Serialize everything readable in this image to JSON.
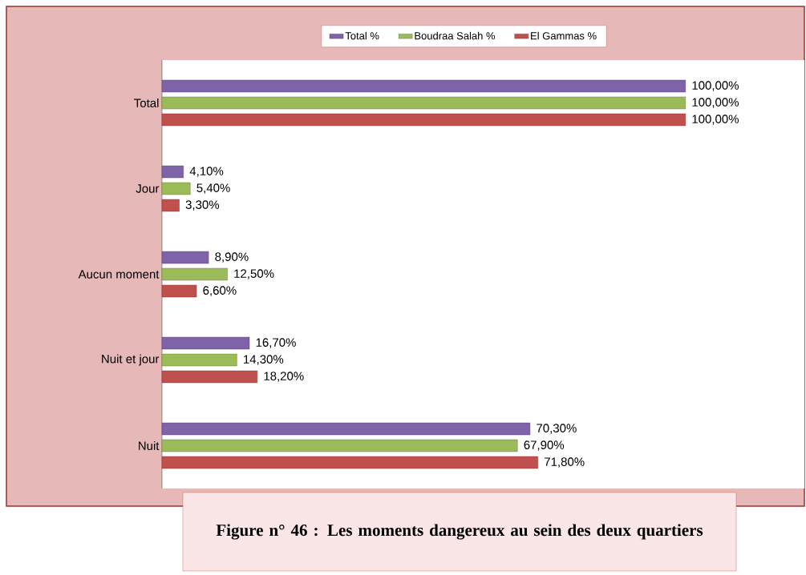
{
  "chart_data": {
    "type": "bar",
    "orientation": "horizontal",
    "categories": [
      "Total",
      "Jour",
      "Aucun moment",
      "Nuit et jour",
      "Nuit"
    ],
    "series": [
      {
        "name": "Total %",
        "color": "#7f63a8",
        "values": [
          100,
          4.1,
          8.9,
          16.7,
          70.3
        ],
        "value_labels": [
          "100,00%",
          "4,10%",
          "8,90%",
          "16,70%",
          "70,30%"
        ]
      },
      {
        "name": "Boudraa Salah %",
        "color": "#9bbb59",
        "values": [
          100,
          5.4,
          12.5,
          14.3,
          67.9
        ],
        "value_labels": [
          "100,00%",
          "5,40%",
          "12,50%",
          "14,30%",
          "67,90%"
        ]
      },
      {
        "name": "El Gammas %",
        "color": "#c0504d",
        "values": [
          100,
          3.3,
          6.6,
          18.2,
          71.8
        ],
        "value_labels": [
          "100,00%",
          "3,30%",
          "6,60%",
          "18,20%",
          "71,80%"
        ]
      }
    ],
    "legend": "top",
    "annotations": [
      "Figure n° 46 : Les moments dangereux au sein des deux quartiers"
    ]
  }
}
